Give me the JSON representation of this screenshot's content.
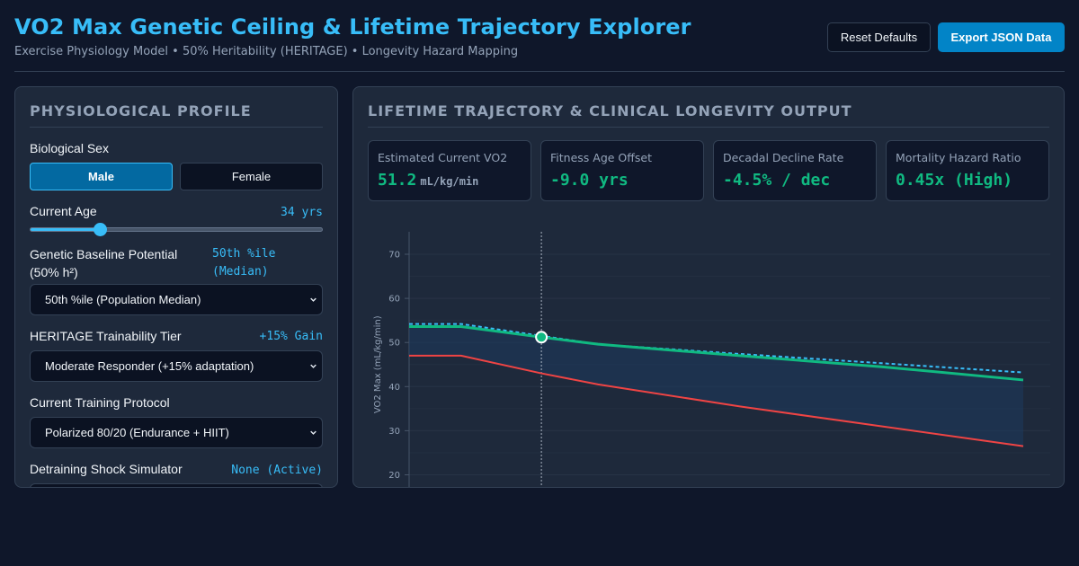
{
  "header": {
    "title": "VO2 Max Genetic Ceiling & Lifetime Trajectory Explorer",
    "subtitle": "Exercise Physiology Model • 50% Heritability (HERITAGE) • Longevity Hazard Mapping",
    "reset_label": "Reset Defaults",
    "export_label": "Export JSON Data"
  },
  "profile": {
    "title": "PHYSIOLOGICAL PROFILE",
    "sex_label": "Biological Sex",
    "sex_options": [
      "Male",
      "Female"
    ],
    "sex_selected": "Male",
    "age_label": "Current Age",
    "age_value": "34 yrs",
    "age_slider_fraction": 0.24,
    "genetic_label_line1": "Genetic Baseline Potential",
    "genetic_label_line2": "(50% h²)",
    "genetic_value_line1": "50th %ile",
    "genetic_value_line2": "(Median)",
    "genetic_select": "50th %ile (Population Median)",
    "trainability_label": "HERITAGE Trainability Tier",
    "trainability_value": "+15% Gain",
    "trainability_select": "Moderate Responder (+15% adaptation)",
    "protocol_label": "Current Training Protocol",
    "protocol_select": "Polarized 80/20 (Endurance + HIIT)",
    "detraining_label": "Detraining Shock Simulator",
    "detraining_value": "None (Active)"
  },
  "output": {
    "title": "LIFETIME TRAJECTORY & CLINICAL LONGEVITY OUTPUT",
    "cards": [
      {
        "label": "Estimated Current VO2",
        "value": "51.2",
        "unit": "mL/kg/min"
      },
      {
        "label": "Fitness Age Offset",
        "value": "-9.0 yrs",
        "unit": ""
      },
      {
        "label": "Decadal Decline Rate",
        "value": "-4.5% / dec",
        "unit": ""
      },
      {
        "label": "Mortality Hazard Ratio",
        "value": "0.45x (High)",
        "unit": ""
      }
    ]
  },
  "chart_data": {
    "type": "line",
    "ylabel": "VO2 Max (mL/kg/min)",
    "yticks": [
      20,
      30,
      40,
      50,
      60,
      70
    ],
    "ylim": [
      15,
      73
    ],
    "xlim": [
      20,
      85
    ],
    "current_age": 34,
    "current_value": 51.2,
    "grid": true,
    "series": [
      {
        "key": "ceiling",
        "color": "#38bdf8",
        "style": "dotted",
        "x": [
          20,
          25.5,
          40,
          55,
          70,
          85
        ],
        "y": [
          54.2,
          54.2,
          49.6,
          47.4,
          45.3,
          43.2
        ]
      },
      {
        "key": "trajectory",
        "color": "#10b981",
        "style": "solid",
        "x": [
          20,
          25.5,
          34,
          40,
          55,
          70,
          85
        ],
        "y": [
          53.6,
          53.6,
          51.2,
          49.6,
          47.0,
          44.5,
          41.5
        ]
      },
      {
        "key": "sedentary",
        "color": "#ef4444",
        "style": "solid",
        "x": [
          20,
          25.5,
          34,
          40,
          55,
          70,
          85
        ],
        "y": [
          47.0,
          47.0,
          43.0,
          40.5,
          35.5,
          31.0,
          26.5
        ]
      }
    ]
  },
  "colors": {
    "accent": "#38bdf8",
    "good": "#10b981",
    "bad": "#ef4444"
  }
}
